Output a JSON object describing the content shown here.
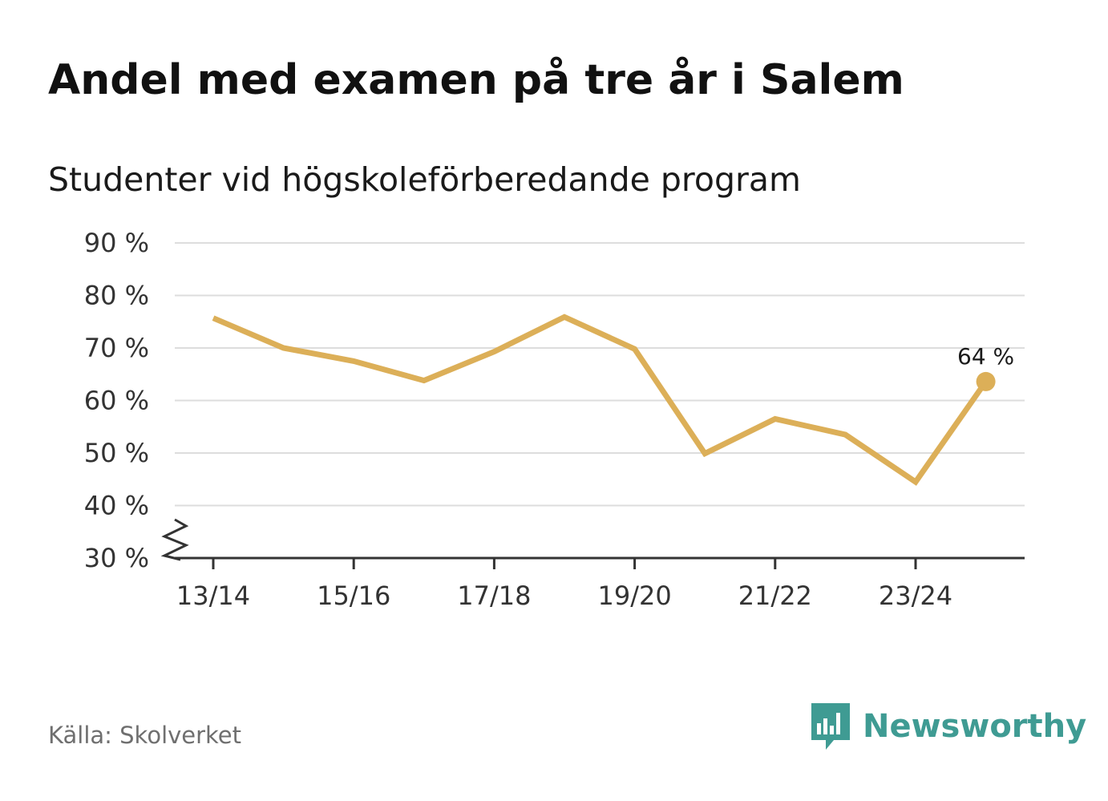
{
  "title": "Andel med examen på tre år i Salem",
  "subtitle": "Studenter vid högskoleförberedande program",
  "source": "Källa: Skolverket",
  "brand": {
    "name": "Newsworthy",
    "icon": "bar-chart-speech-bubble-icon",
    "color": "#3f9b93"
  },
  "colors": {
    "line": "#dcaf58",
    "grid": "#dddddd",
    "axis": "#333333"
  },
  "chart_data": {
    "type": "line",
    "title": "Andel med examen på tre år i Salem",
    "subtitle": "Studenter vid högskoleförberedande program",
    "x": [
      "13/14",
      "14/15",
      "15/16",
      "16/17",
      "17/18",
      "18/19",
      "19/20",
      "20/21",
      "21/22",
      "22/23",
      "23/24",
      "24/25"
    ],
    "x_tick_labels": [
      "13/14",
      "15/16",
      "17/18",
      "19/20",
      "21/22",
      "23/24"
    ],
    "series": [
      {
        "values": [
          75.7,
          70.0,
          67.5,
          63.8,
          69.3,
          75.9,
          69.8,
          49.9,
          56.5,
          53.5,
          44.5,
          63.6
        ]
      }
    ],
    "ylim": [
      30,
      90
    ],
    "y_ticks": [
      30,
      40,
      50,
      60,
      70,
      80,
      90
    ],
    "y_tick_labels": [
      "30 %",
      "40 %",
      "50 %",
      "60 %",
      "70 %",
      "80 %",
      "90 %"
    ],
    "y_axis_break": true,
    "last_point_label": "64 %",
    "grid": true,
    "legend": "none"
  }
}
